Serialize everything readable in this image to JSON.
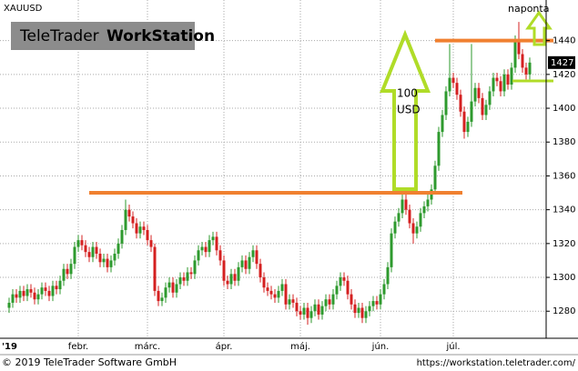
{
  "chart_data": {
    "type": "candlestick",
    "title": "XAUUSD",
    "watermark": {
      "brand": "TeleTrader",
      "product": "WorkStation"
    },
    "up_color": "#2e9a2e",
    "down_color": "#d42020",
    "ylim": [
      1264,
      1464
    ],
    "yticks": [
      1280,
      1300,
      1320,
      1340,
      1360,
      1380,
      1400,
      1420,
      1440
    ],
    "grid": true,
    "categories": [
      "'19",
      null,
      null,
      null,
      null,
      null,
      null,
      null,
      null,
      null,
      null,
      null,
      null,
      null,
      null,
      null,
      null,
      null,
      null,
      null,
      null,
      "febr.",
      null,
      null,
      null,
      null,
      null,
      null,
      null,
      null,
      null,
      null,
      null,
      null,
      null,
      null,
      null,
      null,
      null,
      null,
      "márc.",
      null,
      null,
      null,
      null,
      null,
      null,
      null,
      null,
      null,
      null,
      null,
      null,
      null,
      null,
      null,
      null,
      null,
      null,
      null,
      null,
      "ápr.",
      null,
      null,
      null,
      null,
      null,
      null,
      null,
      null,
      null,
      null,
      null,
      null,
      null,
      null,
      null,
      null,
      null,
      null,
      null,
      null,
      "máj.",
      null,
      null,
      null,
      null,
      null,
      null,
      null,
      null,
      null,
      null,
      null,
      null,
      null,
      null,
      null,
      null,
      null,
      null,
      null,
      null,
      null,
      "jún.",
      null,
      null,
      null,
      null,
      null,
      null,
      null,
      null,
      null,
      null,
      null,
      null,
      null,
      null,
      null,
      null,
      null,
      null,
      null,
      "júl.",
      null,
      null,
      null,
      null,
      null,
      null,
      null,
      null,
      null,
      null,
      null,
      null,
      null,
      null,
      null,
      null,
      null,
      null,
      null
    ],
    "ohlc": [
      [
        1282,
        1288,
        1279,
        1285
      ],
      [
        1285,
        1293,
        1282,
        1290
      ],
      [
        1290,
        1293,
        1285,
        1288
      ],
      [
        1288,
        1295,
        1285,
        1292
      ],
      [
        1292,
        1295,
        1286,
        1289
      ],
      [
        1289,
        1296,
        1286,
        1293
      ],
      [
        1293,
        1296,
        1288,
        1291
      ],
      [
        1291,
        1294,
        1284,
        1287
      ],
      [
        1287,
        1293,
        1284,
        1290
      ],
      [
        1290,
        1297,
        1287,
        1294
      ],
      [
        1294,
        1297,
        1289,
        1292
      ],
      [
        1292,
        1295,
        1286,
        1289
      ],
      [
        1289,
        1298,
        1286,
        1295
      ],
      [
        1295,
        1298,
        1290,
        1293
      ],
      [
        1293,
        1301,
        1290,
        1298
      ],
      [
        1298,
        1308,
        1295,
        1305
      ],
      [
        1305,
        1308,
        1299,
        1302
      ],
      [
        1302,
        1311,
        1299,
        1308
      ],
      [
        1308,
        1321,
        1305,
        1318
      ],
      [
        1318,
        1325,
        1315,
        1322
      ],
      [
        1322,
        1325,
        1316,
        1319
      ],
      [
        1319,
        1322,
        1312,
        1315
      ],
      [
        1315,
        1318,
        1309,
        1312
      ],
      [
        1312,
        1321,
        1309,
        1318
      ],
      [
        1318,
        1321,
        1311,
        1314
      ],
      [
        1314,
        1317,
        1306,
        1309
      ],
      [
        1309,
        1314,
        1306,
        1311
      ],
      [
        1311,
        1314,
        1303,
        1306
      ],
      [
        1306,
        1313,
        1303,
        1310
      ],
      [
        1310,
        1317,
        1307,
        1314
      ],
      [
        1314,
        1323,
        1311,
        1320
      ],
      [
        1320,
        1331,
        1317,
        1328
      ],
      [
        1328,
        1346,
        1325,
        1340
      ],
      [
        1340,
        1343,
        1333,
        1336
      ],
      [
        1336,
        1339,
        1329,
        1332
      ],
      [
        1332,
        1335,
        1323,
        1326
      ],
      [
        1326,
        1333,
        1323,
        1330
      ],
      [
        1330,
        1333,
        1325,
        1328
      ],
      [
        1328,
        1331,
        1319,
        1322
      ],
      [
        1322,
        1325,
        1315,
        1318
      ],
      [
        1318,
        1320,
        1289,
        1292
      ],
      [
        1292,
        1295,
        1283,
        1286
      ],
      [
        1286,
        1291,
        1283,
        1288
      ],
      [
        1288,
        1297,
        1285,
        1294
      ],
      [
        1294,
        1300,
        1291,
        1297
      ],
      [
        1297,
        1300,
        1288,
        1291
      ],
      [
        1291,
        1299,
        1288,
        1296
      ],
      [
        1296,
        1303,
        1293,
        1300
      ],
      [
        1300,
        1303,
        1295,
        1298
      ],
      [
        1298,
        1306,
        1295,
        1303
      ],
      [
        1303,
        1306,
        1299,
        1302
      ],
      [
        1302,
        1313,
        1299,
        1310
      ],
      [
        1310,
        1319,
        1307,
        1316
      ],
      [
        1316,
        1321,
        1313,
        1318
      ],
      [
        1318,
        1321,
        1312,
        1315
      ],
      [
        1315,
        1325,
        1312,
        1322
      ],
      [
        1322,
        1327,
        1319,
        1324
      ],
      [
        1324,
        1327,
        1313,
        1316
      ],
      [
        1316,
        1319,
        1307,
        1310
      ],
      [
        1310,
        1313,
        1295,
        1298
      ],
      [
        1298,
        1301,
        1293,
        1296
      ],
      [
        1296,
        1305,
        1293,
        1302
      ],
      [
        1302,
        1305,
        1295,
        1298
      ],
      [
        1298,
        1309,
        1295,
        1306
      ],
      [
        1306,
        1313,
        1303,
        1310
      ],
      [
        1310,
        1313,
        1302,
        1305
      ],
      [
        1305,
        1315,
        1302,
        1312
      ],
      [
        1312,
        1319,
        1309,
        1316
      ],
      [
        1316,
        1319,
        1305,
        1308
      ],
      [
        1308,
        1311,
        1297,
        1300
      ],
      [
        1300,
        1303,
        1291,
        1294
      ],
      [
        1294,
        1297,
        1289,
        1292
      ],
      [
        1292,
        1295,
        1287,
        1290
      ],
      [
        1290,
        1293,
        1285,
        1288
      ],
      [
        1288,
        1295,
        1285,
        1292
      ],
      [
        1292,
        1299,
        1289,
        1296
      ],
      [
        1296,
        1299,
        1281,
        1284
      ],
      [
        1284,
        1290,
        1281,
        1287
      ],
      [
        1287,
        1290,
        1282,
        1285
      ],
      [
        1285,
        1288,
        1277,
        1280
      ],
      [
        1280,
        1283,
        1275,
        1278
      ],
      [
        1278,
        1285,
        1275,
        1282
      ],
      [
        1282,
        1285,
        1272,
        1276
      ],
      [
        1276,
        1283,
        1273,
        1280
      ],
      [
        1280,
        1287,
        1277,
        1284
      ],
      [
        1284,
        1287,
        1275,
        1278
      ],
      [
        1278,
        1286,
        1275,
        1283
      ],
      [
        1283,
        1290,
        1280,
        1287
      ],
      [
        1287,
        1290,
        1281,
        1284
      ],
      [
        1284,
        1293,
        1281,
        1290
      ],
      [
        1290,
        1298,
        1287,
        1295
      ],
      [
        1295,
        1303,
        1292,
        1300
      ],
      [
        1300,
        1303,
        1295,
        1298
      ],
      [
        1298,
        1301,
        1287,
        1290
      ],
      [
        1290,
        1293,
        1281,
        1284
      ],
      [
        1284,
        1287,
        1276,
        1279
      ],
      [
        1279,
        1285,
        1276,
        1282
      ],
      [
        1282,
        1285,
        1273,
        1276
      ],
      [
        1276,
        1283,
        1273,
        1280
      ],
      [
        1280,
        1286,
        1277,
        1283
      ],
      [
        1283,
        1289,
        1280,
        1286
      ],
      [
        1286,
        1289,
        1281,
        1284
      ],
      [
        1284,
        1293,
        1281,
        1290
      ],
      [
        1290,
        1299,
        1287,
        1296
      ],
      [
        1296,
        1309,
        1293,
        1306
      ],
      [
        1306,
        1329,
        1303,
        1326
      ],
      [
        1326,
        1336,
        1323,
        1333
      ],
      [
        1333,
        1341,
        1330,
        1338
      ],
      [
        1338,
        1349,
        1335,
        1346
      ],
      [
        1346,
        1349,
        1337,
        1340
      ],
      [
        1340,
        1343,
        1329,
        1332
      ],
      [
        1332,
        1335,
        1320,
        1326
      ],
      [
        1326,
        1333,
        1323,
        1330
      ],
      [
        1330,
        1341,
        1327,
        1338
      ],
      [
        1338,
        1345,
        1335,
        1342
      ],
      [
        1342,
        1349,
        1339,
        1346
      ],
      [
        1346,
        1355,
        1343,
        1352
      ],
      [
        1352,
        1369,
        1349,
        1366
      ],
      [
        1366,
        1389,
        1363,
        1386
      ],
      [
        1386,
        1399,
        1383,
        1396
      ],
      [
        1396,
        1413,
        1393,
        1410
      ],
      [
        1410,
        1438,
        1407,
        1418
      ],
      [
        1418,
        1421,
        1412,
        1415
      ],
      [
        1415,
        1418,
        1405,
        1408
      ],
      [
        1408,
        1411,
        1395,
        1398
      ],
      [
        1398,
        1401,
        1382,
        1386
      ],
      [
        1386,
        1395,
        1383,
        1392
      ],
      [
        1392,
        1438,
        1389,
        1404
      ],
      [
        1404,
        1415,
        1401,
        1412
      ],
      [
        1412,
        1415,
        1403,
        1406
      ],
      [
        1406,
        1409,
        1393,
        1396
      ],
      [
        1396,
        1405,
        1393,
        1402
      ],
      [
        1402,
        1413,
        1399,
        1410
      ],
      [
        1410,
        1421,
        1407,
        1418
      ],
      [
        1418,
        1421,
        1413,
        1416
      ],
      [
        1416,
        1419,
        1407,
        1410
      ],
      [
        1410,
        1423,
        1407,
        1420
      ],
      [
        1420,
        1423,
        1411,
        1414
      ],
      [
        1414,
        1427,
        1411,
        1424
      ],
      [
        1424,
        1443,
        1421,
        1440
      ],
      [
        1440,
        1451,
        1429,
        1432
      ],
      [
        1432,
        1435,
        1421,
        1424
      ],
      [
        1424,
        1427,
        1417,
        1420
      ],
      [
        1420,
        1430,
        1417,
        1427
      ]
    ],
    "hlines": [
      1350,
      1440
    ],
    "hline_color": "#f08030",
    "annotations": {
      "move": [
        "100",
        "USD"
      ],
      "period": "naponta"
    },
    "footer": {
      "copyright": "© 2019 TeleTrader Software GmbH",
      "url": "https://workstation.teletrader.com/"
    }
  }
}
